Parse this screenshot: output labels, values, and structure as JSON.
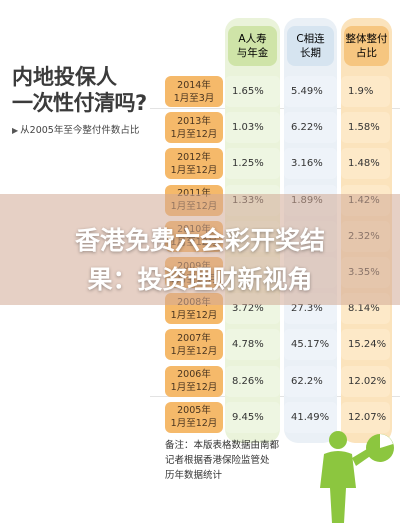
{
  "headline": {
    "line1": "内地投保人",
    "line2": "一次性付清吗?"
  },
  "subtitle": "从2005年至今整付件数占比",
  "overlay_title": {
    "line1": "香港免费六会彩开奖结",
    "line2": "果：投资理财新视角"
  },
  "note": {
    "line1": "备注：本版表格数据由南都",
    "line2": "记者根据香港保险监管处",
    "line3": "历年数据统计"
  },
  "colors": {
    "col_a": "#cfe4a8",
    "col_b": "#d6e4f0",
    "col_c": "#f6c680",
    "row_label": "#f5b96a",
    "overlay": "#d2aa96"
  },
  "chart_data": {
    "type": "table",
    "columns": [
      "A人寿\n与年金",
      "C相连\n长期",
      "整体整付\n占比"
    ],
    "rows": [
      {
        "period": "2014年\n1月至3月",
        "values": [
          "1.65%",
          "5.49%",
          "1.9%"
        ]
      },
      {
        "period": "2013年\n1月至12月",
        "values": [
          "1.03%",
          "6.22%",
          "1.58%"
        ]
      },
      {
        "period": "2012年\n1月至12月",
        "values": [
          "1.25%",
          "3.16%",
          "1.48%"
        ]
      },
      {
        "period": "2011年\n1月至12月",
        "values": [
          "1.33%",
          "1.89%",
          "1.42%"
        ]
      },
      {
        "period": "2010年\n1月至12月",
        "values": [
          "",
          "",
          "2.32%"
        ]
      },
      {
        "period": "2009年\n1月至12月",
        "values": [
          "",
          "",
          "3.35%"
        ]
      },
      {
        "period": "2008年\n1月至12月",
        "values": [
          "3.72%",
          "27.3%",
          "8.14%"
        ]
      },
      {
        "period": "2007年\n1月至12月",
        "values": [
          "4.78%",
          "45.17%",
          "15.24%"
        ]
      },
      {
        "period": "2006年\n1月至12月",
        "values": [
          "8.26%",
          "62.2%",
          "12.02%"
        ]
      },
      {
        "period": "2005年\n1月至12月",
        "values": [
          "9.45%",
          "41.49%",
          "12.07%"
        ]
      }
    ]
  }
}
